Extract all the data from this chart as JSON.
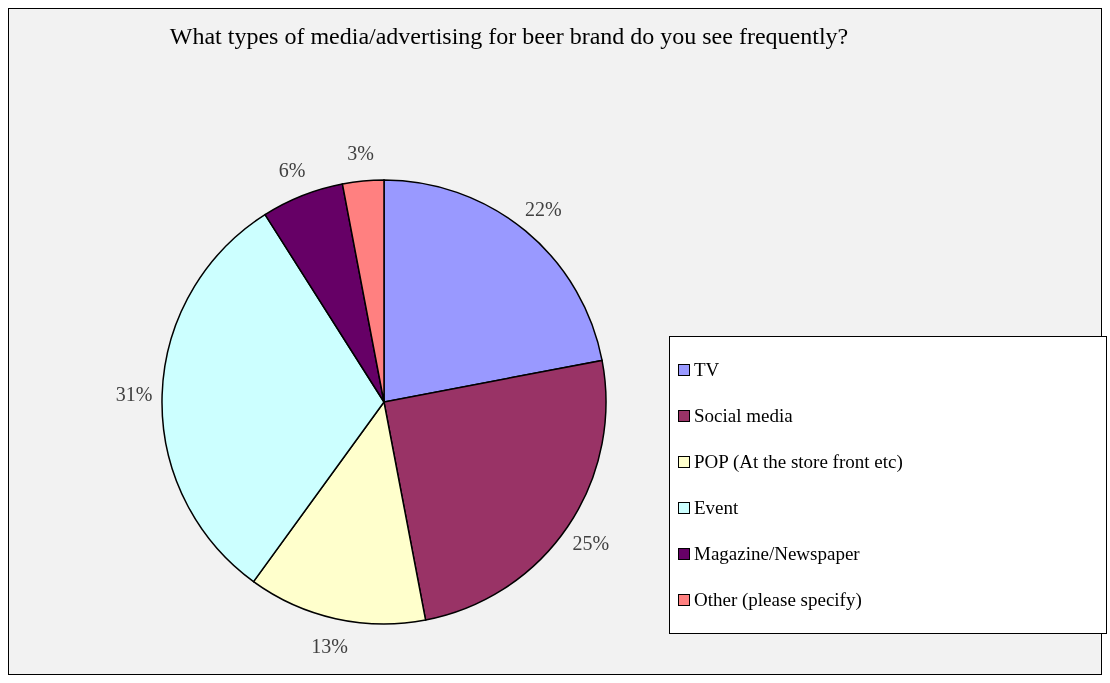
{
  "chart_data": {
    "type": "pie",
    "title": "What types of media/advertising for beer brand do you see frequently?",
    "categories": [
      "TV",
      "Social media",
      "POP (At the store front etc)",
      "Event",
      "Magazine/Newspaper",
      "Other (please specify)"
    ],
    "values": [
      22,
      25,
      13,
      31,
      6,
      3
    ],
    "colors": [
      "#9999ff",
      "#993366",
      "#ffffcc",
      "#ccffff",
      "#660066",
      "#ff8080"
    ],
    "value_labels": [
      "22%",
      "25%",
      "13%",
      "31%",
      "6%",
      "3%"
    ],
    "legend": "right"
  }
}
